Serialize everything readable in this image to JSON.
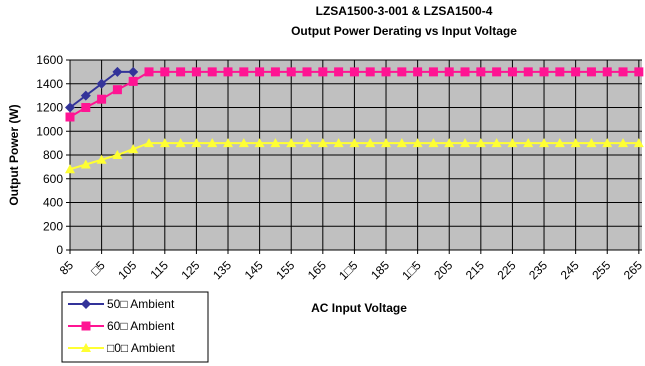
{
  "chart_data": {
    "type": "line",
    "title": "LZSA1500-3-001 & LZSA1500-4",
    "subtitle": "Output Power Derating vs Input Voltage",
    "x_label": "AC Input Voltage",
    "y_label": "Output Power (W)",
    "x": [
      85,
      90,
      95,
      100,
      105,
      110,
      115,
      120,
      125,
      130,
      135,
      140,
      145,
      150,
      155,
      160,
      165,
      170,
      175,
      180,
      185,
      190,
      195,
      200,
      205,
      210,
      215,
      220,
      225,
      230,
      235,
      240,
      245,
      250,
      255,
      260,
      265
    ],
    "series": [
      {
        "name": "50□ Ambient",
        "color": "#333399",
        "marker": "diamond",
        "values": [
          1200,
          1300,
          1400,
          1500,
          1500,
          null,
          null,
          null,
          null,
          null,
          null,
          null,
          null,
          null,
          null,
          null,
          null,
          null,
          null,
          null,
          null,
          null,
          null,
          null,
          null,
          null,
          null,
          null,
          null,
          null,
          null,
          null,
          null,
          null,
          null,
          null,
          null
        ]
      },
      {
        "name": "60□ Ambient",
        "color": "#ff1493",
        "marker": "square",
        "values": [
          1120,
          1200,
          1270,
          1350,
          1420,
          1500,
          1500,
          1500,
          1500,
          1500,
          1500,
          1500,
          1500,
          1500,
          1500,
          1500,
          1500,
          1500,
          1500,
          1500,
          1500,
          1500,
          1500,
          1500,
          1500,
          1500,
          1500,
          1500,
          1500,
          1500,
          1500,
          1500,
          1500,
          1500,
          1500,
          1500,
          1500
        ]
      },
      {
        "name": "□0□ Ambient",
        "color": "#ffff33",
        "marker": "triangle",
        "values": [
          680,
          720,
          760,
          800,
          850,
          900,
          900,
          900,
          900,
          900,
          900,
          900,
          900,
          900,
          900,
          900,
          900,
          900,
          900,
          900,
          900,
          900,
          900,
          900,
          900,
          900,
          900,
          900,
          900,
          900,
          900,
          900,
          900,
          900,
          900,
          900,
          900
        ]
      }
    ],
    "xlim": [
      85,
      266
    ],
    "xticks": [
      85,
      {
        "value": 95,
        "label": "□5"
      },
      105,
      115,
      125,
      135,
      145,
      155,
      165,
      {
        "value": 175,
        "label": "1□5"
      },
      185,
      {
        "value": 195,
        "label": "1□5"
      },
      205,
      215,
      225,
      235,
      245,
      255,
      265
    ],
    "ylim": [
      0,
      1600
    ],
    "yticks": [
      0,
      200,
      400,
      600,
      800,
      1000,
      1200,
      1400,
      1600
    ],
    "grid": true,
    "legend": "bottom-left"
  }
}
